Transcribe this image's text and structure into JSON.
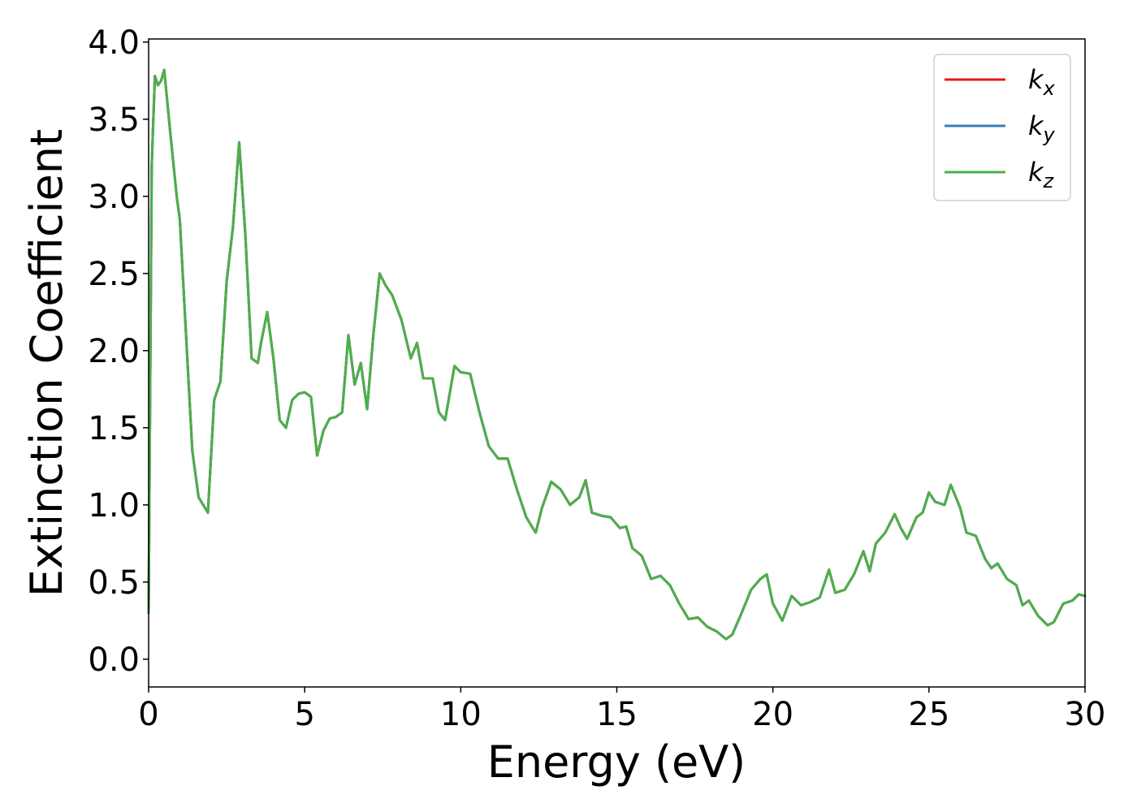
{
  "chart_data": {
    "type": "line",
    "xlabel": "Energy (eV)",
    "ylabel": "Extinction Coefficient",
    "xlim": [
      0,
      30
    ],
    "ylim": [
      -0.18,
      4.02
    ],
    "xticks": [
      0,
      5,
      10,
      15,
      20,
      25,
      30
    ],
    "xtick_labels": [
      "0",
      "5",
      "10",
      "15",
      "20",
      "25",
      "30"
    ],
    "yticks": [
      0.0,
      0.5,
      1.0,
      1.5,
      2.0,
      2.5,
      3.0,
      3.5,
      4.0
    ],
    "ytick_labels": [
      "0.0",
      "0.5",
      "1.0",
      "1.5",
      "2.0",
      "2.5",
      "3.0",
      "3.5",
      "4.0"
    ],
    "grid": false,
    "legend_position": "top-right",
    "series": [
      {
        "name": "k",
        "subscript": "x",
        "color": "#e41a1c",
        "x": [
          0,
          0.1,
          0.2,
          0.3,
          0.4,
          0.5,
          0.7,
          0.9,
          1.0,
          1.2,
          1.4,
          1.6,
          1.9,
          2.1,
          2.3,
          2.5,
          2.7,
          2.9,
          3.1,
          3.3,
          3.5,
          3.6,
          3.8,
          4.0,
          4.2,
          4.4,
          4.6,
          4.8,
          5.0,
          5.2,
          5.4,
          5.6,
          5.8,
          6.0,
          6.2,
          6.4,
          6.6,
          6.8,
          7.0,
          7.2,
          7.4,
          7.6,
          7.8,
          8.1,
          8.4,
          8.6,
          8.8,
          9.1,
          9.3,
          9.5,
          9.8,
          10.0,
          10.3,
          10.6,
          10.9,
          11.2,
          11.5,
          11.8,
          12.1,
          12.4,
          12.6,
          12.9,
          13.2,
          13.5,
          13.8,
          14.0,
          14.2,
          14.5,
          14.8,
          15.1,
          15.3,
          15.5,
          15.8,
          16.1,
          16.4,
          16.7,
          17.0,
          17.3,
          17.6,
          17.9,
          18.2,
          18.5,
          18.7,
          19.0,
          19.3,
          19.6,
          19.8,
          20.0,
          20.3,
          20.6,
          20.9,
          21.2,
          21.5,
          21.8,
          22.0,
          22.3,
          22.6,
          22.9,
          23.1,
          23.3,
          23.6,
          23.9,
          24.1,
          24.3,
          24.6,
          24.8,
          25.0,
          25.2,
          25.5,
          25.7,
          26.0,
          26.2,
          26.5,
          26.8,
          27.0,
          27.2,
          27.5,
          27.8,
          28.0,
          28.2,
          28.5,
          28.8,
          29.0,
          29.3,
          29.6,
          29.8,
          30.0
        ],
        "values": [
          0.3,
          3.2,
          3.78,
          3.72,
          3.75,
          3.82,
          3.4,
          3.0,
          2.85,
          2.1,
          1.35,
          1.05,
          0.95,
          1.68,
          1.8,
          2.45,
          2.8,
          3.35,
          2.75,
          1.95,
          1.92,
          2.05,
          2.25,
          1.95,
          1.55,
          1.5,
          1.68,
          1.72,
          1.73,
          1.7,
          1.32,
          1.48,
          1.56,
          1.57,
          1.6,
          2.1,
          1.78,
          1.92,
          1.62,
          2.1,
          2.5,
          2.42,
          2.36,
          2.2,
          1.95,
          2.05,
          1.82,
          1.82,
          1.6,
          1.55,
          1.9,
          1.86,
          1.85,
          1.6,
          1.38,
          1.3,
          1.3,
          1.1,
          0.92,
          0.82,
          0.98,
          1.15,
          1.1,
          1.0,
          1.05,
          1.16,
          0.95,
          0.93,
          0.92,
          0.85,
          0.86,
          0.72,
          0.67,
          0.52,
          0.54,
          0.48,
          0.36,
          0.26,
          0.27,
          0.21,
          0.18,
          0.13,
          0.16,
          0.3,
          0.45,
          0.52,
          0.55,
          0.36,
          0.25,
          0.41,
          0.35,
          0.37,
          0.4,
          0.58,
          0.43,
          0.45,
          0.55,
          0.7,
          0.57,
          0.75,
          0.82,
          0.94,
          0.85,
          0.78,
          0.92,
          0.95,
          1.08,
          1.02,
          1.0,
          1.13,
          0.98,
          0.82,
          0.8,
          0.65,
          0.59,
          0.62,
          0.52,
          0.48,
          0.35,
          0.38,
          0.28,
          0.22,
          0.24,
          0.36,
          0.38,
          0.42,
          0.41
        ]
      },
      {
        "name": "k",
        "subscript": "y",
        "color": "#377eb8",
        "same_as_series": 0
      },
      {
        "name": "k",
        "subscript": "z",
        "color": "#4daf4a",
        "same_as_series": 0
      }
    ]
  }
}
